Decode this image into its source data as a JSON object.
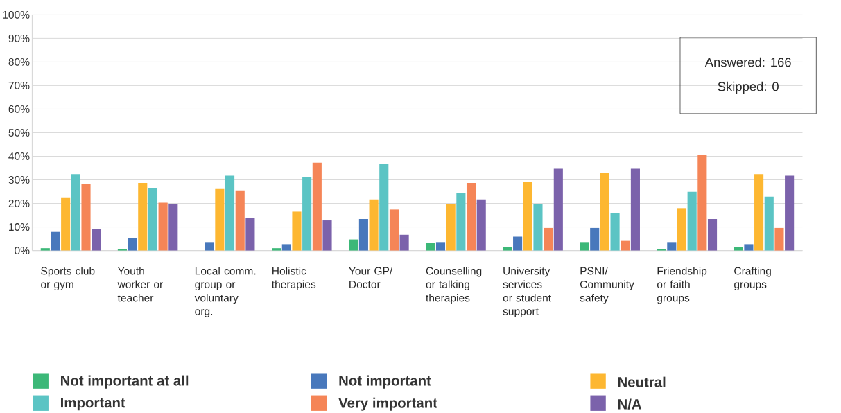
{
  "chart_data": {
    "type": "bar",
    "categories": [
      "Sports club or gym",
      "Youth worker or teacher",
      "Local comm. group or voluntary org.",
      "Holistic therapies",
      "Your GP/ Doctor",
      "Counselling or talking therapies",
      "University services or student support",
      "PSNI/ Community safety",
      "Friendship or faith groups",
      "Crafting groups"
    ],
    "series": [
      {
        "name": "Not important at all",
        "color": "#3cb878",
        "values": [
          1.0,
          0.5,
          0,
          1.0,
          4.7,
          3.3,
          1.5,
          3.6,
          0.5,
          1.5
        ]
      },
      {
        "name": "Not important",
        "color": "#4878bc",
        "values": [
          7.9,
          5.3,
          3.6,
          2.7,
          13.4,
          3.6,
          5.9,
          9.6,
          3.6,
          2.7
        ]
      },
      {
        "name": "Neutral",
        "color": "#fdb731",
        "values": [
          22.3,
          28.7,
          26.1,
          16.5,
          21.7,
          19.7,
          29.2,
          33.0,
          18.0,
          32.4
        ]
      },
      {
        "name": "Important",
        "color": "#5bc4c4",
        "values": [
          32.4,
          26.6,
          31.8,
          31.0,
          36.7,
          24.3,
          19.7,
          16.0,
          24.9,
          22.9
        ]
      },
      {
        "name": "Very important",
        "color": "#f58557",
        "values": [
          28.1,
          20.3,
          25.5,
          37.3,
          17.4,
          28.7,
          9.6,
          4.1,
          40.5,
          9.6
        ]
      },
      {
        "name": "N/A",
        "color": "#7b62ab",
        "values": [
          9.0,
          19.7,
          13.9,
          12.8,
          6.7,
          21.7,
          34.7,
          34.7,
          13.4,
          31.8
        ]
      }
    ],
    "ylim": [
      0,
      100
    ],
    "yticks": [
      {
        "value": 0,
        "label": "0%"
      },
      {
        "value": 10,
        "label": "10%"
      },
      {
        "value": 20,
        "label": "20%"
      },
      {
        "value": 30,
        "label": "30%"
      },
      {
        "value": 40,
        "label": "40%"
      },
      {
        "value": 50,
        "label": "50%"
      },
      {
        "value": 60,
        "label": "60%"
      },
      {
        "value": 70,
        "label": "70%"
      },
      {
        "value": 80,
        "label": "80%"
      },
      {
        "value": 90,
        "label": "90%"
      },
      {
        "value": 100,
        "label": "100%"
      }
    ],
    "grid": "y",
    "legend": "bottom",
    "annotations": [
      "Answered: 166",
      "Skipped: 0"
    ]
  }
}
